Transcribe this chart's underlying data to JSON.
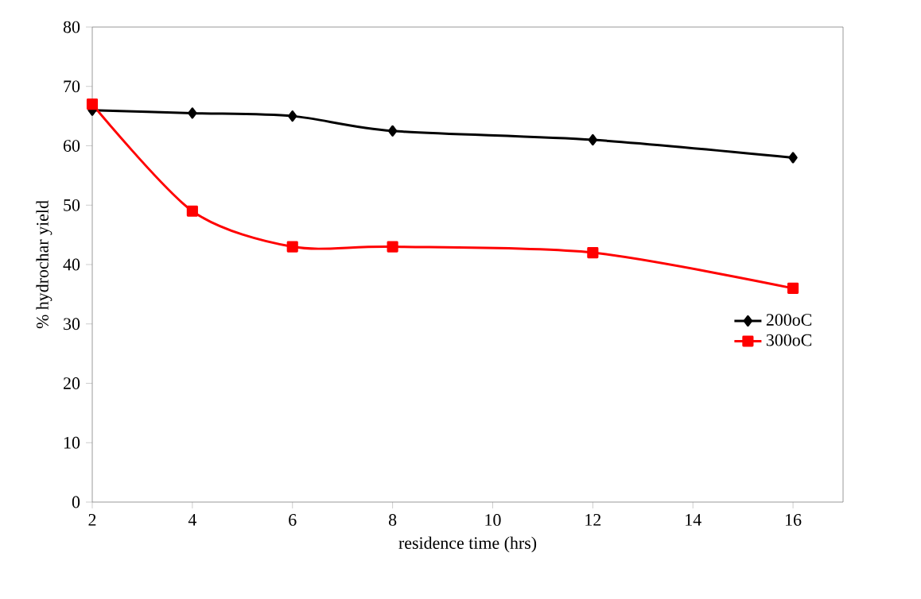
{
  "chart_data": {
    "type": "line",
    "xlabel": "residence time (hrs)",
    "ylabel": "% hydrochar yield",
    "x": [
      2,
      4,
      6,
      8,
      12,
      16
    ],
    "series": [
      {
        "name": "200oC",
        "color": "#000000",
        "marker": "diamond",
        "values": [
          66,
          65.5,
          65,
          62.5,
          61,
          58
        ]
      },
      {
        "name": "300oC",
        "color": "#ff0000",
        "marker": "square",
        "values": [
          67,
          49,
          43,
          43,
          42,
          36
        ]
      }
    ],
    "xlim": [
      2,
      17
    ],
    "xticks": [
      2,
      4,
      6,
      8,
      10,
      12,
      14,
      16
    ],
    "ylim": [
      0,
      80
    ],
    "yticks": [
      0,
      10,
      20,
      30,
      40,
      50,
      60,
      70,
      80
    ],
    "grid": false,
    "legend": "right",
    "line_style": "solid"
  }
}
